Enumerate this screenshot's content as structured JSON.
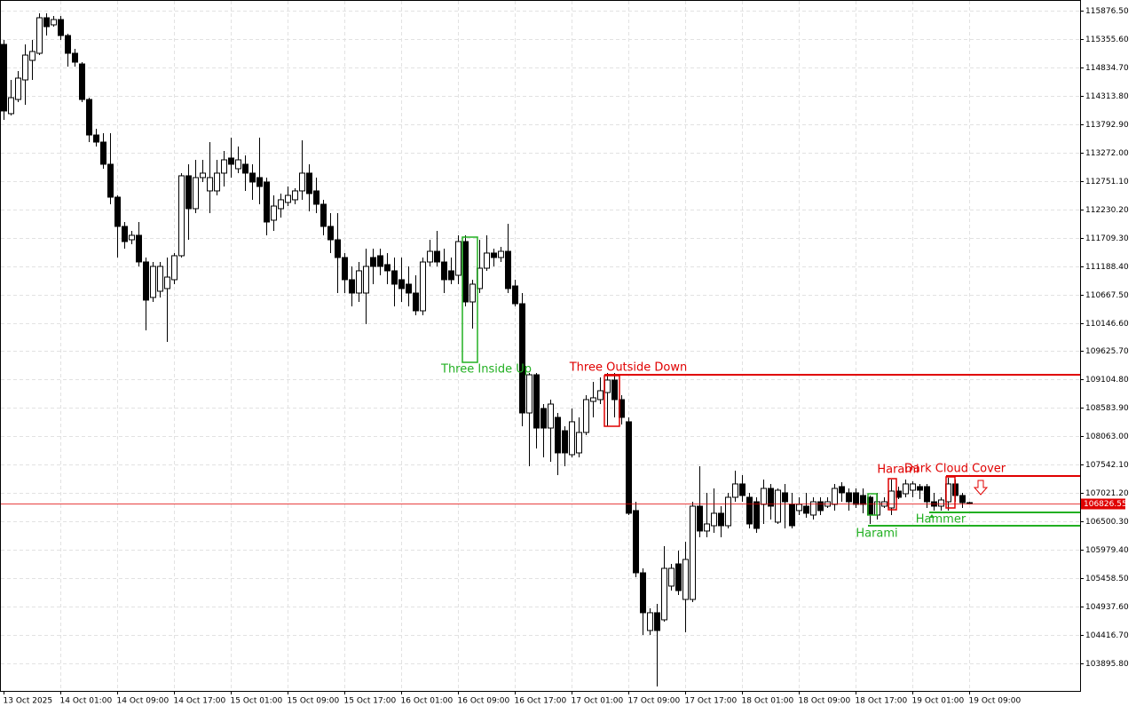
{
  "chart_data": {
    "type": "candlestick",
    "categories": [
      "13 Oct 2025",
      null,
      null,
      null,
      null,
      null,
      null,
      null,
      "14 Oct 01:00",
      null,
      null,
      null,
      null,
      null,
      null,
      null,
      "14 Oct 09:00",
      null,
      null,
      null,
      null,
      null,
      null,
      null,
      "14 Oct 17:00",
      null,
      null,
      null,
      null,
      null,
      null,
      null,
      "15 Oct 01:00",
      null,
      null,
      null,
      null,
      null,
      null,
      null,
      "15 Oct 09:00",
      null,
      null,
      null,
      null,
      null,
      null,
      null,
      "15 Oct 17:00",
      null,
      null,
      null,
      null,
      null,
      null,
      null,
      "16 Oct 01:00",
      null,
      null,
      null,
      null,
      null,
      null,
      null,
      "16 Oct 09:00",
      null,
      null,
      null,
      null,
      null,
      null,
      null,
      "16 Oct 17:00",
      null,
      null,
      null,
      null,
      null,
      null,
      null,
      "17 Oct 01:00",
      null,
      null,
      null,
      null,
      null,
      null,
      null,
      "17 Oct 09:00",
      null,
      null,
      null,
      null,
      null,
      null,
      null,
      "17 Oct 17:00",
      null,
      null,
      null,
      null,
      null,
      null,
      null,
      "18 Oct 01:00",
      null,
      null,
      null,
      null,
      null,
      null,
      null,
      "18 Oct 09:00",
      null,
      null,
      null,
      null,
      null,
      null,
      null,
      "18 Oct 17:00",
      null,
      null,
      null,
      null,
      null,
      null,
      null,
      "19 Oct 01:00",
      null,
      null,
      null,
      null,
      null,
      null,
      null,
      "19 Oct 09:00"
    ],
    "open": [
      115257,
      113986,
      114246,
      114605,
      114964,
      115094,
      115746,
      115616,
      115713,
      115420,
      115094,
      114898,
      114246,
      113594,
      113464,
      113057,
      112453,
      111916,
      111671,
      111753,
      111264,
      110612,
      110726,
      110775,
      110938,
      111378,
      112845,
      112242,
      112812,
      112568,
      112568,
      112894,
      113171,
      112975,
      113057,
      112894,
      112812,
      112731,
      112030,
      112242,
      112356,
      112405,
      112568,
      112894,
      112568,
      112323,
      111916,
      111671,
      111345,
      110938,
      110693,
      110693,
      111345,
      111378,
      111215,
      111101,
      110938,
      110856,
      110693,
      110367,
      111263,
      111459,
      111263,
      111101,
      111019,
      111638,
      110530,
      110775,
      111149,
      111427,
      111345,
      111459,
      110823,
      110497,
      108492,
      109193,
      108574,
      108215,
      108411,
      108166,
      107726,
      107759,
      108134,
      108704,
      108737,
      108867,
      109096,
      108737,
      108330,
      106700,
      105558,
      104499,
      104825,
      104695,
      105314,
      105721,
      105069,
      105069,
      106781,
      106325,
      106422,
      106651,
      106422,
      106944,
      107189,
      106944,
      106862,
      106814,
      107107,
      106488,
      107026,
      106814,
      106700,
      106781,
      106618,
      106862,
      106781,
      106814,
      107140,
      107026,
      107026,
      106977,
      106944,
      106618,
      106781,
      106748,
      107058,
      107009,
      107074,
      107140,
      107140,
      106862,
      106781,
      106862,
      107189,
      106977,
      106846
    ],
    "high": [
      115339,
      114605,
      114768,
      115257,
      115339,
      115828,
      115828,
      115779,
      115779,
      115453,
      115176,
      114931,
      114279,
      113708,
      113627,
      113627,
      112486,
      111997,
      111834,
      111997,
      111345,
      111264,
      111264,
      111345,
      111427,
      112894,
      113057,
      113138,
      113138,
      113464,
      113138,
      113301,
      113546,
      113383,
      113220,
      113057,
      113546,
      112812,
      112486,
      112519,
      112649,
      112616,
      113497,
      113057,
      112812,
      112405,
      112160,
      112160,
      111427,
      111182,
      111264,
      111508,
      111508,
      111508,
      111427,
      111345,
      111345,
      111182,
      111019,
      111345,
      111671,
      111834,
      111508,
      111345,
      111753,
      111753,
      110938,
      111671,
      111753,
      111508,
      111541,
      111964,
      110938,
      110693,
      109226,
      109226,
      108655,
      108737,
      108492,
      108248,
      108574,
      108411,
      108818,
      109063,
      109144,
      109226,
      109226,
      108818,
      108411,
      106862,
      105640,
      104906,
      104988,
      106047,
      105721,
      105966,
      106129,
      106862,
      107514,
      107026,
      107107,
      106781,
      107026,
      107433,
      107351,
      107026,
      106944,
      107270,
      107189,
      107107,
      107189,
      107026,
      106944,
      107026,
      106944,
      106944,
      106944,
      107189,
      107221,
      107107,
      107107,
      107107,
      106977,
      107026,
      106944,
      107270,
      107140,
      107270,
      107237,
      107189,
      107189,
      107026,
      106944,
      107303,
      107270,
      107026,
      106862
    ],
    "low": [
      113872,
      113953,
      114197,
      114149,
      114605,
      115061,
      115420,
      115583,
      115339,
      114850,
      114850,
      114197,
      113464,
      113383,
      112975,
      112323,
      111345,
      111508,
      111590,
      111182,
      110008,
      110530,
      110612,
      109796,
      110856,
      111345,
      111671,
      112160,
      112731,
      112160,
      112486,
      112649,
      112812,
      112894,
      112568,
      112405,
      112323,
      111753,
      111834,
      112079,
      112290,
      112323,
      112405,
      112193,
      112160,
      111753,
      111427,
      110693,
      110693,
      110448,
      110530,
      110122,
      110856,
      111019,
      110856,
      110448,
      110530,
      110448,
      110285,
      110285,
      111182,
      111182,
      110693,
      110856,
      110856,
      110448,
      110041,
      110693,
      111101,
      111182,
      111263,
      110693,
      110448,
      108248,
      107514,
      107840,
      107677,
      107596,
      107351,
      107514,
      107677,
      107677,
      108085,
      108411,
      108655,
      108248,
      108411,
      108281,
      106618,
      105477,
      104417,
      104417,
      103472,
      104662,
      105232,
      105151,
      104466,
      105021,
      106210,
      106210,
      106292,
      106210,
      106373,
      106862,
      106862,
      106373,
      106292,
      106455,
      106537,
      106455,
      106373,
      106373,
      106618,
      106569,
      106537,
      106618,
      106748,
      106700,
      106862,
      106700,
      106748,
      106651,
      106455,
      106537,
      106748,
      106618,
      106911,
      106944,
      106944,
      106911,
      106748,
      106700,
      106700,
      106700,
      106862,
      106748,
      106814
    ],
    "close": [
      114035,
      114279,
      114638,
      115061,
      115127,
      115746,
      115583,
      115713,
      115420,
      115094,
      114931,
      114246,
      113594,
      113464,
      113057,
      112453,
      111916,
      111638,
      111753,
      111264,
      110563,
      111182,
      111182,
      110986,
      111378,
      112845,
      112242,
      112812,
      112894,
      112812,
      112894,
      113138,
      113057,
      113138,
      112894,
      112731,
      112649,
      111997,
      112290,
      112405,
      112486,
      112568,
      112894,
      112519,
      112323,
      111916,
      111671,
      111345,
      110938,
      110693,
      111101,
      111182,
      111182,
      111182,
      111101,
      110856,
      110775,
      110693,
      110367,
      111263,
      111459,
      111263,
      110938,
      110938,
      111638,
      110530,
      110856,
      111149,
      111427,
      111345,
      111459,
      110775,
      110497,
      108492,
      109193,
      108215,
      108215,
      108655,
      107759,
      107759,
      108330,
      108134,
      108737,
      108770,
      108900,
      109096,
      108737,
      108411,
      106651,
      105558,
      104825,
      104825,
      104499,
      105640,
      105640,
      105232,
      105803,
      106781,
      106325,
      106455,
      106651,
      106422,
      106944,
      107189,
      106977,
      106455,
      106373,
      107107,
      106781,
      107074,
      106862,
      106422,
      106814,
      106651,
      106862,
      106700,
      106862,
      107107,
      107026,
      106862,
      106814,
      106814,
      106618,
      106862,
      106862,
      107058,
      106944,
      107189,
      107189,
      107074,
      106862,
      106781,
      106895,
      107189,
      106977,
      106846,
      106826.55
    ],
    "ylim": [
      103390,
      116072
    ],
    "yticks": [
      {
        "value": 115876.5,
        "label": "115876.50"
      },
      {
        "value": 115355.6,
        "label": "115355.60"
      },
      {
        "value": 114834.7,
        "label": "114834.70"
      },
      {
        "value": 114313.8,
        "label": "114313.80"
      },
      {
        "value": 113792.9,
        "label": "113792.90"
      },
      {
        "value": 113272,
        "label": "113272.00"
      },
      {
        "value": 112751.1,
        "label": "112751.10"
      },
      {
        "value": 112230.2,
        "label": "112230.20"
      },
      {
        "value": 111709.3,
        "label": "111709.30"
      },
      {
        "value": 111188.4,
        "label": "111188.40"
      },
      {
        "value": 110667.5,
        "label": "110667.50"
      },
      {
        "value": 110146.6,
        "label": "110146.60"
      },
      {
        "value": 109625.7,
        "label": "109625.70"
      },
      {
        "value": 109104.8,
        "label": "109104.80"
      },
      {
        "value": 108583.9,
        "label": "108583.90"
      },
      {
        "value": 108063,
        "label": "108063.00"
      },
      {
        "value": 107542.1,
        "label": "107542.10"
      },
      {
        "value": 107021.2,
        "label": "107021.20"
      },
      {
        "value": 106500.3,
        "label": "106500.30"
      },
      {
        "value": 105979.4,
        "label": "105979.40"
      },
      {
        "value": 105458.5,
        "label": "105458.50"
      },
      {
        "value": 104937.6,
        "label": "104937.60"
      },
      {
        "value": 104416.7,
        "label": "104416.70"
      },
      {
        "value": 103895.8,
        "label": "103895.80"
      }
    ],
    "grid": true,
    "current_price": 106826.55,
    "current_price_color": "#e00000",
    "annotations": [
      {
        "text": "Three Inside Up",
        "color": "#22b022"
      },
      {
        "text": "Three Outside Down",
        "color": "#e00000"
      },
      {
        "text": "Harami",
        "color": "#e00000"
      },
      {
        "text": "Dark Cloud Cover",
        "color": "#e00000"
      },
      {
        "text": "Harami",
        "color": "#22b022"
      },
      {
        "text": "Hammer",
        "color": "#22b022"
      }
    ]
  }
}
